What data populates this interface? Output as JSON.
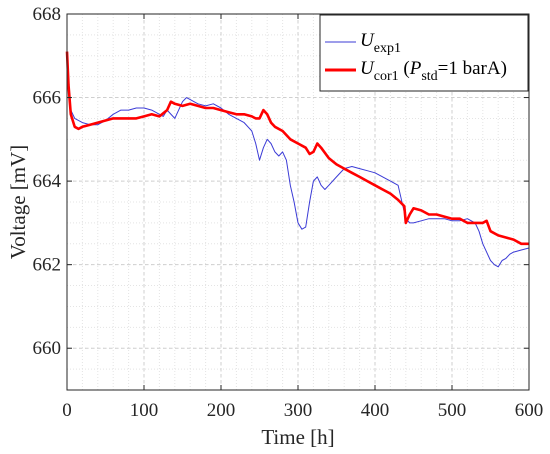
{
  "chart_data": {
    "type": "line",
    "title": "",
    "xlabel": "Time [h]",
    "ylabel": "Voltage [mV]",
    "xlim": [
      0,
      600
    ],
    "ylim": [
      659,
      668
    ],
    "xticks": [
      0,
      100,
      200,
      300,
      400,
      500,
      600
    ],
    "xtick_labels": [
      "0",
      "100",
      "200",
      "300",
      "400",
      "500",
      "600"
    ],
    "yticks": [
      660,
      662,
      664,
      666,
      668
    ],
    "ytick_labels": [
      "660",
      "662",
      "664",
      "666",
      "668"
    ],
    "grid": true,
    "minor_grid": true,
    "legend_position": "top-right",
    "legend": {
      "series1": {
        "main": "U",
        "sub": "exp1",
        "tail": ""
      },
      "series2": {
        "main": "U",
        "sub": "cor1",
        "pre": " (",
        "p_main": "P",
        "p_sub": "std",
        "tail": "=1 barA)"
      }
    },
    "series": [
      {
        "name_id": "U_exp1",
        "color": "#3b3bd6",
        "x": [
          0,
          2,
          5,
          10,
          20,
          30,
          40,
          50,
          60,
          70,
          80,
          90,
          100,
          110,
          120,
          125,
          130,
          140,
          150,
          155,
          160,
          170,
          180,
          190,
          200,
          210,
          220,
          230,
          240,
          245,
          250,
          255,
          260,
          265,
          270,
          275,
          280,
          285,
          290,
          295,
          300,
          305,
          310,
          315,
          320,
          325,
          330,
          335,
          340,
          350,
          360,
          370,
          380,
          390,
          400,
          410,
          420,
          430,
          440,
          445,
          450,
          460,
          470,
          480,
          490,
          500,
          510,
          520,
          530,
          535,
          540,
          545,
          550,
          555,
          560,
          565,
          570,
          575,
          580,
          590,
          600
        ],
        "values": [
          667.0,
          666.2,
          665.7,
          665.5,
          665.4,
          665.35,
          665.35,
          665.45,
          665.6,
          665.7,
          665.7,
          665.75,
          665.75,
          665.7,
          665.6,
          665.55,
          665.7,
          665.5,
          665.9,
          666.0,
          665.95,
          665.85,
          665.8,
          665.85,
          665.75,
          665.6,
          665.5,
          665.4,
          665.2,
          664.9,
          664.5,
          664.8,
          665.0,
          664.9,
          664.7,
          664.6,
          664.7,
          664.5,
          663.9,
          663.5,
          663.0,
          662.85,
          662.9,
          663.5,
          664.0,
          664.1,
          663.9,
          663.8,
          663.9,
          664.1,
          664.3,
          664.35,
          664.3,
          664.25,
          664.2,
          664.1,
          664.0,
          663.9,
          663.1,
          663.0,
          663.0,
          663.05,
          663.1,
          663.1,
          663.1,
          663.05,
          663.05,
          663.1,
          663.0,
          662.8,
          662.5,
          662.3,
          662.1,
          662.0,
          661.95,
          662.1,
          662.15,
          662.25,
          662.3,
          662.35,
          662.4
        ]
      },
      {
        "name_id": "U_cor1",
        "color": "#ff0000",
        "x": [
          0,
          2,
          5,
          10,
          15,
          20,
          30,
          40,
          50,
          60,
          70,
          80,
          90,
          100,
          110,
          120,
          130,
          135,
          140,
          150,
          160,
          170,
          180,
          190,
          200,
          210,
          220,
          230,
          240,
          245,
          250,
          255,
          260,
          265,
          270,
          280,
          290,
          300,
          310,
          315,
          320,
          325,
          330,
          340,
          350,
          360,
          370,
          380,
          390,
          400,
          410,
          420,
          430,
          438,
          440,
          445,
          450,
          460,
          470,
          480,
          490,
          500,
          510,
          520,
          530,
          540,
          545,
          550,
          560,
          570,
          580,
          590,
          600
        ],
        "values": [
          667.1,
          666.3,
          665.6,
          665.3,
          665.25,
          665.3,
          665.35,
          665.4,
          665.45,
          665.5,
          665.5,
          665.5,
          665.5,
          665.55,
          665.6,
          665.55,
          665.7,
          665.9,
          665.85,
          665.8,
          665.85,
          665.8,
          665.75,
          665.75,
          665.7,
          665.65,
          665.6,
          665.6,
          665.55,
          665.5,
          665.5,
          665.7,
          665.6,
          665.4,
          665.3,
          665.2,
          665.0,
          664.9,
          664.8,
          664.65,
          664.7,
          664.9,
          664.8,
          664.55,
          664.4,
          664.3,
          664.2,
          664.1,
          664.0,
          663.9,
          663.8,
          663.7,
          663.55,
          663.4,
          663.0,
          663.2,
          663.35,
          663.3,
          663.2,
          663.2,
          663.15,
          663.1,
          663.1,
          663.0,
          663.0,
          663.0,
          663.05,
          662.8,
          662.7,
          662.65,
          662.6,
          662.5,
          662.5
        ]
      }
    ]
  }
}
